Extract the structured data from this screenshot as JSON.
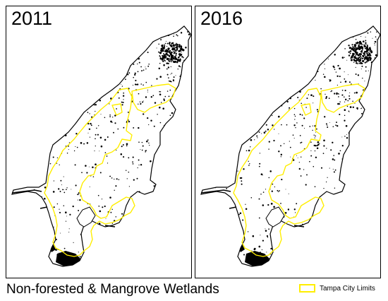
{
  "panels": [
    {
      "year": "2011"
    },
    {
      "year": "2016"
    }
  ],
  "caption": "Non-forested & Mangrove Wetlands",
  "legend": {
    "label": "Tampa City Limits",
    "color": "#ffee00"
  },
  "colors": {
    "boundary": "#000000",
    "wetland": "#000000",
    "city_limits": "#ffee00",
    "background": "#ffffff"
  }
}
